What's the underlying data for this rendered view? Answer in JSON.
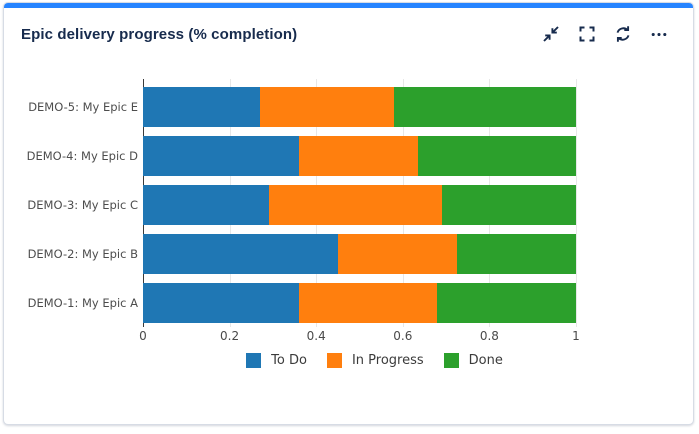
{
  "card": {
    "title": "Epic delivery progress (% completion)",
    "accent_color": "#2684FF",
    "title_color": "#172B4D",
    "icon_color": "#172B4D",
    "toolbar_icons": [
      "collapse-icon",
      "fullscreen-icon",
      "refresh-icon",
      "more-options-icon"
    ]
  },
  "chart_data": {
    "type": "bar",
    "orientation": "horizontal",
    "stacked": true,
    "title": "Epic delivery progress (% completion)",
    "categories": [
      "DEMO-5: My Epic E",
      "DEMO-4: My Epic D",
      "DEMO-3: My Epic C",
      "DEMO-2: My Epic B",
      "DEMO-1: My Epic A"
    ],
    "series": [
      {
        "name": "To Do",
        "color": "#1f77b4",
        "values": [
          0.27,
          0.36,
          0.29,
          0.45,
          0.36
        ]
      },
      {
        "name": "In Progress",
        "color": "#ff7f0e",
        "values": [
          0.31,
          0.275,
          0.4,
          0.275,
          0.32
        ]
      },
      {
        "name": "Done",
        "color": "#2ca02c",
        "values": [
          0.42,
          0.365,
          0.31,
          0.275,
          0.32
        ]
      }
    ],
    "xlim": [
      0,
      1
    ],
    "x_tick_labels": [
      "0",
      "0.2",
      "0.4",
      "0.6",
      "0.8",
      "1"
    ],
    "x_tick_values": [
      0,
      0.2,
      0.4,
      0.6,
      0.8,
      1
    ],
    "grid": true,
    "legend_position": "bottom"
  }
}
